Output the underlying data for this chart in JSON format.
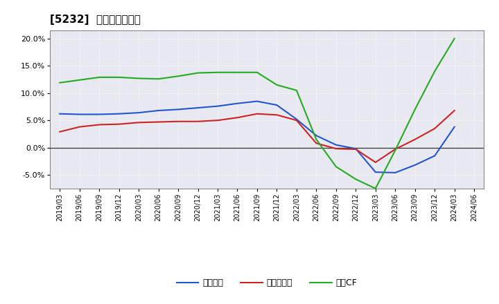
{
  "title": "[5232]  マージンの推移",
  "x_labels": [
    "2019/03",
    "2019/06",
    "2019/09",
    "2019/12",
    "2020/03",
    "2020/06",
    "2020/09",
    "2020/12",
    "2021/03",
    "2021/06",
    "2021/09",
    "2021/12",
    "2022/03",
    "2022/06",
    "2022/09",
    "2022/12",
    "2023/03",
    "2023/06",
    "2023/09",
    "2023/12",
    "2024/03",
    "2024/06"
  ],
  "operating_income": [
    6.2,
    6.1,
    6.1,
    6.2,
    6.4,
    6.8,
    7.0,
    7.3,
    7.6,
    8.1,
    8.5,
    7.8,
    5.2,
    2.2,
    0.5,
    -0.2,
    -4.5,
    -4.6,
    -3.2,
    -1.5,
    3.8,
    null
  ],
  "net_income": [
    2.9,
    3.8,
    4.2,
    4.3,
    4.6,
    4.7,
    4.8,
    4.8,
    5.0,
    5.5,
    6.2,
    6.0,
    5.0,
    0.8,
    -0.2,
    -0.3,
    -2.7,
    -0.3,
    1.5,
    3.5,
    6.8,
    null
  ],
  "operating_cf": [
    11.9,
    12.4,
    12.9,
    12.9,
    12.7,
    12.6,
    13.1,
    13.7,
    13.8,
    13.8,
    13.8,
    11.5,
    10.5,
    1.5,
    -3.5,
    -5.8,
    -7.5,
    -0.5,
    7.0,
    14.0,
    20.0,
    null
  ],
  "blue_color": "#2255CC",
  "red_color": "#CC2222",
  "green_color": "#22AA22",
  "ylim": [
    -7.5,
    21.5
  ],
  "yticks": [
    -5.0,
    0.0,
    5.0,
    10.0,
    15.0,
    20.0
  ],
  "plot_bg_color": "#e8e8f0",
  "fig_bg_color": "#ffffff",
  "grid_color": "#ffffff",
  "legend_labels": [
    "経常利益",
    "当期純利益",
    "営業CF"
  ]
}
